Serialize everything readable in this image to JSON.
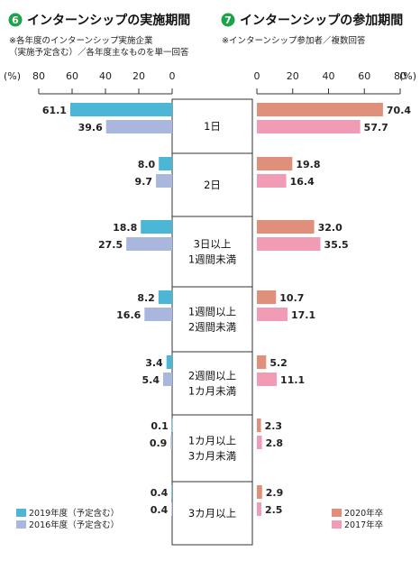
{
  "chart_data": [
    {
      "type": "bar",
      "orientation": "horizontal",
      "direction": "leftward",
      "number": "6",
      "title": "インターンシップの実施期間",
      "notes": [
        "※各年度のインターンシップ実施企業",
        "（実施予定含む）／各年度主なものを単一回答"
      ],
      "unit_label": "(%)",
      "xlim": [
        0,
        80
      ],
      "ticks": [
        80,
        60,
        40,
        20,
        0
      ],
      "categories": [
        "1日",
        "2日",
        "3日以上\n1週間未満",
        "1週間以上\n2週間未満",
        "2週間以上\n1カ月未満",
        "1カ月以上\n3カ月未満",
        "3カ月以上"
      ],
      "series": [
        {
          "name": "2019年度（予定含む）",
          "color": "#4bb6d6",
          "values": [
            61.1,
            8.0,
            18.8,
            8.2,
            3.4,
            0.1,
            0.4
          ]
        },
        {
          "name": "2016年度（予定含む）",
          "color": "#a9b6dd",
          "values": [
            39.6,
            9.7,
            27.5,
            16.6,
            5.4,
            0.9,
            0.4
          ]
        }
      ],
      "value_labels": [
        [
          "61.1",
          "8.0",
          "18.8",
          "8.2",
          "3.4",
          "0.1",
          "0.4"
        ],
        [
          "39.6",
          "9.7",
          "27.5",
          "16.6",
          "5.4",
          "0.9",
          "0.4"
        ]
      ]
    },
    {
      "type": "bar",
      "orientation": "horizontal",
      "direction": "rightward",
      "number": "7",
      "title": "インターンシップの参加期間",
      "notes": [
        "※インターンシップ参加者／複数回答"
      ],
      "unit_label": "(%)",
      "xlim": [
        0,
        80
      ],
      "ticks": [
        0,
        20,
        40,
        60,
        80
      ],
      "categories": [
        "1日",
        "2日",
        "3日以上\n1週間未満",
        "1週間以上\n2週間未満",
        "2週間以上\n1カ月未満",
        "1カ月以上\n3カ月未満",
        "3カ月以上"
      ],
      "series": [
        {
          "name": "2020年卒",
          "color": "#e0907a",
          "values": [
            70.4,
            19.8,
            32.0,
            10.7,
            5.2,
            2.3,
            2.9
          ]
        },
        {
          "name": "2017年卒",
          "color": "#f29bb5",
          "values": [
            57.7,
            16.4,
            35.5,
            17.1,
            11.1,
            2.8,
            2.5
          ]
        }
      ],
      "value_labels": [
        [
          "70.4",
          "19.8",
          "32.0",
          "10.7",
          "5.2",
          "2.3",
          "2.9"
        ],
        [
          "57.7",
          "16.4",
          "35.5",
          "17.1",
          "11.1",
          "2.8",
          "2.5"
        ]
      ]
    }
  ]
}
